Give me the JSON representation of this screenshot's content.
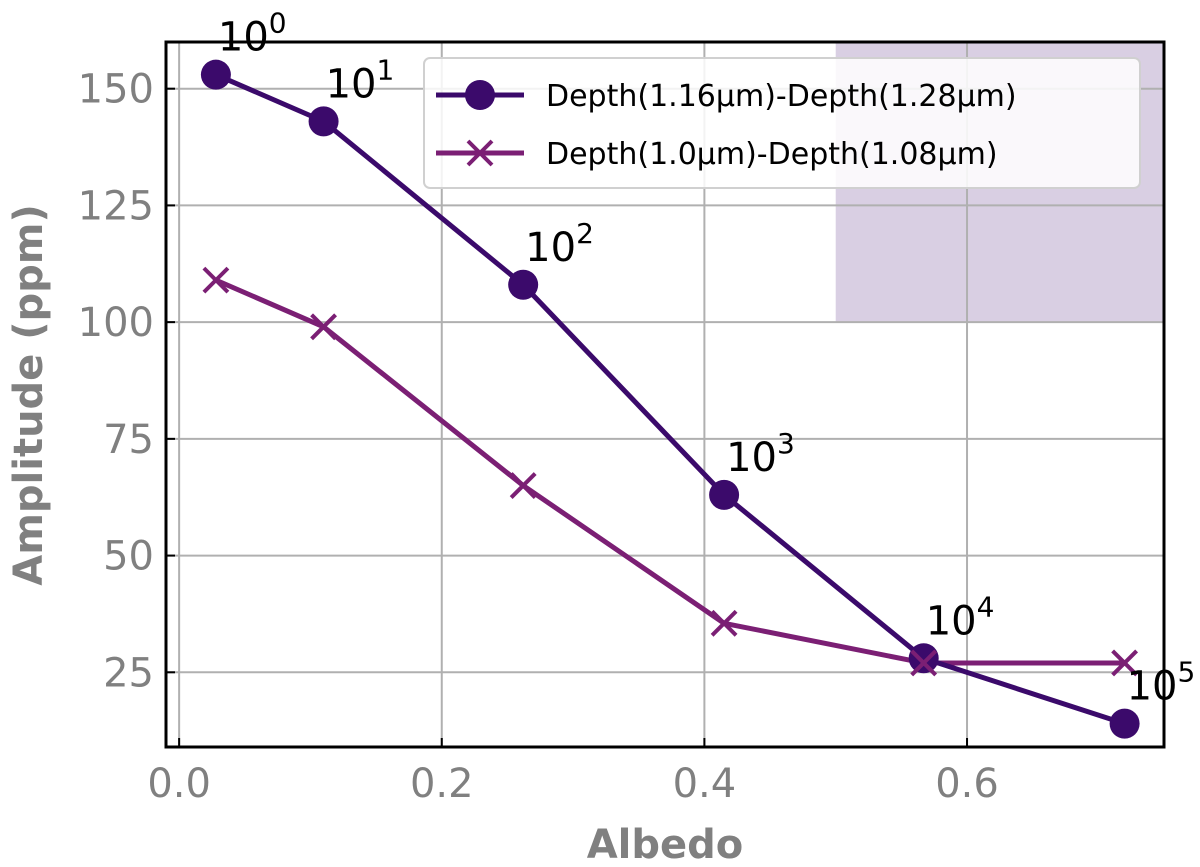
{
  "chart_data": {
    "type": "line",
    "xlabel": "Albedo",
    "ylabel": "Amplitude (ppm)",
    "xlim": [
      -0.01,
      0.75
    ],
    "ylim": [
      9,
      160
    ],
    "xticks": [
      0.0,
      0.2,
      0.4,
      0.6
    ],
    "xtick_labels": [
      "0.0",
      "0.2",
      "0.4",
      "0.6"
    ],
    "yticks": [
      25,
      50,
      75,
      100,
      125,
      150
    ],
    "ytick_labels": [
      "25",
      "50",
      "75",
      "100",
      "125",
      "150"
    ],
    "grid": true,
    "legend_position": "upper-right",
    "shaded_region": {
      "x": [
        0.5,
        0.75
      ],
      "y": [
        100,
        160
      ],
      "color": "#d9cfe3"
    },
    "series": [
      {
        "name": "Depth(1.16μm)-Depth(1.28μm)",
        "marker": "circle",
        "color": "#3b0a6b",
        "x": [
          0.028,
          0.11,
          0.262,
          0.415,
          0.567,
          0.72
        ],
        "y": [
          153,
          143,
          108,
          63,
          28,
          14
        ]
      },
      {
        "name": "Depth(1.0μm)-Depth(1.08μm)",
        "marker": "x",
        "color": "#7b1f74",
        "x": [
          0.028,
          0.11,
          0.262,
          0.415,
          0.567,
          0.72
        ],
        "y": [
          109,
          99,
          65,
          35.5,
          27,
          27
        ]
      }
    ],
    "point_labels": [
      {
        "base": "10",
        "exp": "0"
      },
      {
        "base": "10",
        "exp": "1"
      },
      {
        "base": "10",
        "exp": "2"
      },
      {
        "base": "10",
        "exp": "3"
      },
      {
        "base": "10",
        "exp": "4"
      },
      {
        "base": "10",
        "exp": "5"
      }
    ]
  }
}
